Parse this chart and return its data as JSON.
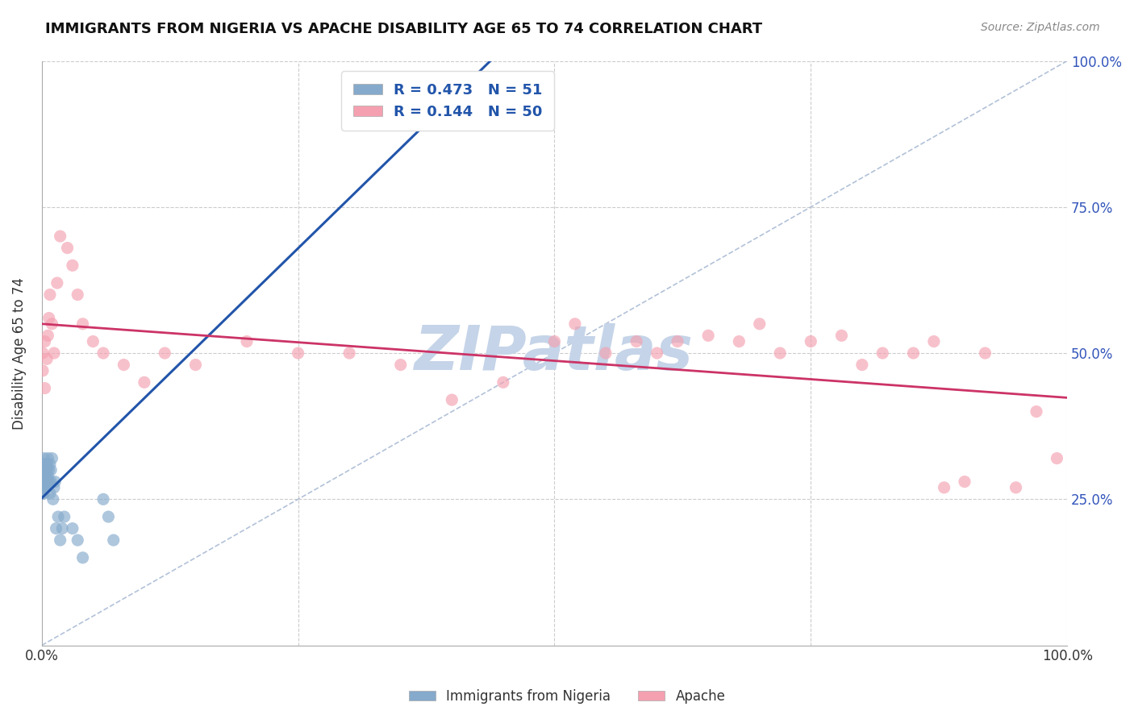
{
  "title": "IMMIGRANTS FROM NIGERIA VS APACHE DISABILITY AGE 65 TO 74 CORRELATION CHART",
  "source_text": "Source: ZipAtlas.com",
  "ylabel": "Disability Age 65 to 74",
  "legend_labels": [
    "Immigrants from Nigeria",
    "Apache"
  ],
  "r_nigeria": 0.473,
  "n_nigeria": 51,
  "r_apache": 0.144,
  "n_apache": 50,
  "blue_color": "#85AACC",
  "pink_color": "#F4A0B0",
  "trend_blue": "#2255AA",
  "trend_pink": "#CC3366",
  "diag_color": "#AABBD4",
  "watermark_color": "#C5D4E8",
  "background_color": "#FFFFFF",
  "nigeria_x": [
    0.001,
    0.001,
    0.001,
    0.001,
    0.001,
    0.001,
    0.001,
    0.001,
    0.002,
    0.002,
    0.002,
    0.002,
    0.002,
    0.002,
    0.002,
    0.003,
    0.003,
    0.003,
    0.003,
    0.003,
    0.004,
    0.004,
    0.004,
    0.004,
    0.005,
    0.005,
    0.005,
    0.006,
    0.006,
    0.007,
    0.007,
    0.008,
    0.008,
    0.009,
    0.009,
    0.01,
    0.011,
    0.012,
    0.013,
    0.014,
    0.016,
    0.018,
    0.02,
    0.022,
    0.03,
    0.035,
    0.04,
    0.06,
    0.065,
    0.07,
    0.34
  ],
  "nigeria_y": [
    0.26,
    0.27,
    0.27,
    0.28,
    0.28,
    0.29,
    0.3,
    0.3,
    0.26,
    0.27,
    0.28,
    0.29,
    0.3,
    0.31,
    0.32,
    0.27,
    0.28,
    0.29,
    0.3,
    0.31,
    0.27,
    0.28,
    0.29,
    0.3,
    0.28,
    0.3,
    0.31,
    0.29,
    0.32,
    0.28,
    0.3,
    0.31,
    0.26,
    0.3,
    0.28,
    0.32,
    0.25,
    0.27,
    0.28,
    0.2,
    0.22,
    0.18,
    0.2,
    0.22,
    0.2,
    0.18,
    0.15,
    0.25,
    0.22,
    0.18,
    0.97
  ],
  "apache_x": [
    0.001,
    0.001,
    0.003,
    0.003,
    0.005,
    0.006,
    0.007,
    0.008,
    0.01,
    0.012,
    0.015,
    0.018,
    0.025,
    0.03,
    0.035,
    0.04,
    0.05,
    0.06,
    0.08,
    0.1,
    0.12,
    0.15,
    0.2,
    0.25,
    0.3,
    0.35,
    0.4,
    0.45,
    0.5,
    0.52,
    0.55,
    0.58,
    0.6,
    0.62,
    0.65,
    0.68,
    0.7,
    0.72,
    0.75,
    0.78,
    0.8,
    0.82,
    0.85,
    0.87,
    0.88,
    0.9,
    0.92,
    0.95,
    0.97,
    0.99
  ],
  "apache_y": [
    0.47,
    0.5,
    0.44,
    0.52,
    0.49,
    0.53,
    0.56,
    0.6,
    0.55,
    0.5,
    0.62,
    0.7,
    0.68,
    0.65,
    0.6,
    0.55,
    0.52,
    0.5,
    0.48,
    0.45,
    0.5,
    0.48,
    0.52,
    0.5,
    0.5,
    0.48,
    0.42,
    0.45,
    0.52,
    0.55,
    0.5,
    0.52,
    0.5,
    0.52,
    0.53,
    0.52,
    0.55,
    0.5,
    0.52,
    0.53,
    0.48,
    0.5,
    0.5,
    0.52,
    0.27,
    0.28,
    0.5,
    0.27,
    0.4,
    0.32
  ],
  "xlim": [
    0.0,
    1.0
  ],
  "ylim": [
    0.0,
    1.0
  ],
  "ytick_vals": [
    0.0,
    0.25,
    0.5,
    0.75,
    1.0
  ],
  "ytick_labels_left": [
    "",
    "",
    "",
    "",
    ""
  ],
  "ytick_labels_right": [
    "",
    "25.0%",
    "50.0%",
    "75.0%",
    "100.0%"
  ],
  "xtick_vals": [
    0.0,
    0.25,
    0.5,
    0.75,
    1.0
  ],
  "xtick_labels": [
    "0.0%",
    "",
    "",
    "",
    "100.0%"
  ]
}
